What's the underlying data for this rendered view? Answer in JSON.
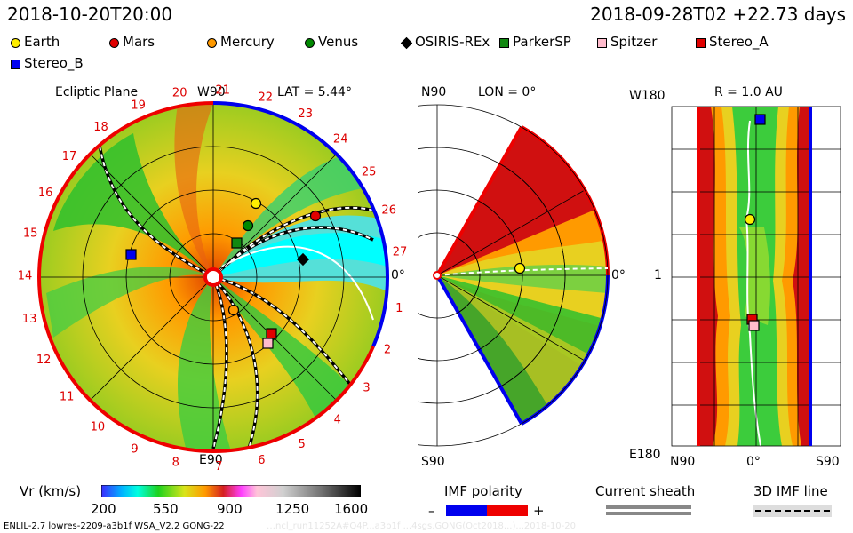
{
  "header": {
    "left_time": "2018-10-20T20:00",
    "right_time": "2018-09-28T02 +22.73 days"
  },
  "legend": [
    {
      "label": "Earth",
      "shape": "circle",
      "color": "#ffee00"
    },
    {
      "label": "Mars",
      "shape": "circle",
      "color": "#e00000"
    },
    {
      "label": "Mercury",
      "shape": "circle",
      "color": "#ff9900"
    },
    {
      "label": "Venus",
      "shape": "circle",
      "color": "#008800"
    },
    {
      "label": "OSIRIS-REx",
      "shape": "diamond",
      "color": "#000000"
    },
    {
      "label": "ParkerSP",
      "shape": "square",
      "color": "#118811"
    },
    {
      "label": "Spitzer",
      "shape": "square",
      "color": "#ffbbcc"
    },
    {
      "label": "Stereo_A",
      "shape": "square",
      "color": "#e00000"
    },
    {
      "label": "Stereo_B",
      "shape": "square",
      "color": "#0000ee"
    }
  ],
  "panel1": {
    "title": "Ecliptic Plane",
    "top_label": "W90",
    "lat_label": "LAT = 5.44°",
    "right_label": "0°",
    "bottom_label": "E90",
    "sector_numbers": [
      "1",
      "2",
      "3",
      "4",
      "5",
      "6",
      "7",
      "8",
      "9",
      "10",
      "11",
      "12",
      "13",
      "14",
      "15",
      "16",
      "17",
      "18",
      "19",
      "20",
      "21",
      "22",
      "23",
      "24",
      "25",
      "26",
      "27"
    ]
  },
  "panel2": {
    "top_left_label": "N90",
    "lon_label": "LON = 0°",
    "right_label": "0°",
    "bottom_label": "S90"
  },
  "panel3": {
    "top_left_label": "W180",
    "r_label": "R = 1.0 AU",
    "mid_label": "1",
    "bottom_left_label": "E180",
    "x_labels": [
      "N90",
      "0°",
      "S90"
    ]
  },
  "colorbar": {
    "label": "Vr (km/s)",
    "ticks": [
      "200",
      "550",
      "900",
      "1250",
      "1600"
    ]
  },
  "imf": {
    "title": "IMF polarity",
    "minus": "–",
    "plus": "+",
    "neg_color": "#0000ee",
    "pos_color": "#ee0000"
  },
  "sheath": {
    "title": "Current sheath"
  },
  "imf3d": {
    "title": "3D IMF line"
  },
  "footer": {
    "left": "ENLIL-2.7 lowres-2209-a3b1f WSA_V2.2 GONG-22",
    "faint": "…ncl_run11252A#Q4P...a3b1f ...4sgs.GONG(Oct2018...)...2018-10-20"
  }
}
